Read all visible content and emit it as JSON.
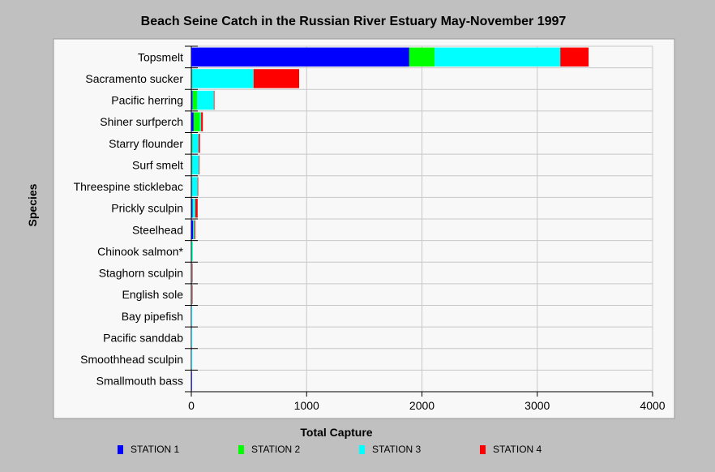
{
  "chart_data": {
    "type": "bar",
    "orientation": "horizontal",
    "stacked": true,
    "title": "Beach Seine Catch in the Russian River Estuary May-November 1997",
    "xlabel": "Total Capture",
    "ylabel": "Species",
    "xlim": [
      0,
      4000
    ],
    "xticks": [
      "0",
      "1000",
      "2000",
      "3000",
      "4000"
    ],
    "grid": true,
    "legend_position": "bottom",
    "categories": [
      "Topsmelt",
      "Sacramento sucker",
      "Pacific herring",
      "Shiner surfperch",
      "Starry flounder",
      "Surf smelt",
      "Threespine sticklebac",
      "Prickly sculpin",
      "Steelhead",
      "Chinook salmon*",
      "Staghorn sculpin",
      "English sole",
      "Bay pipefish",
      "Pacific sanddab",
      "Smoothhead sculpin",
      "Smallmouth bass"
    ],
    "series": [
      {
        "name": "STATION 1",
        "color": "#0000ff",
        "values": [
          1890,
          5,
          10,
          20,
          5,
          5,
          5,
          10,
          15,
          2,
          2,
          2,
          1,
          1,
          1,
          1
        ]
      },
      {
        "name": "STATION 2",
        "color": "#00ff00",
        "values": [
          220,
          5,
          40,
          55,
          8,
          6,
          4,
          5,
          3,
          6,
          1,
          1,
          0,
          0,
          0,
          0
        ]
      },
      {
        "name": "STATION 3",
        "color": "#00ffff",
        "values": [
          1090,
          530,
          145,
          10,
          50,
          55,
          45,
          20,
          8,
          2,
          2,
          2,
          2,
          1,
          1,
          0
        ]
      },
      {
        "name": "STATION 4",
        "color": "#ff0000",
        "values": [
          245,
          395,
          5,
          15,
          12,
          2,
          2,
          20,
          8,
          0,
          5,
          5,
          0,
          0,
          0,
          0
        ]
      }
    ]
  }
}
